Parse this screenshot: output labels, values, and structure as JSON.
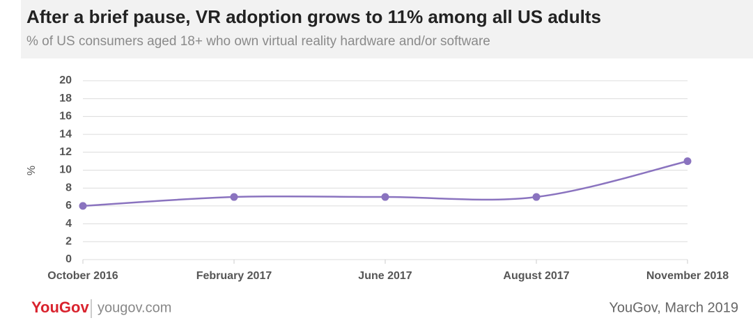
{
  "chart_data": {
    "type": "line",
    "title": "After a brief pause, VR adoption grows to 11% among all US adults",
    "subtitle": "% of US consumers aged 18+ who own virtual reality hardware and/or software",
    "y_label": "%",
    "categories": [
      "October 2016",
      "February 2017",
      "June 2017",
      "August 2017",
      "November 2018"
    ],
    "values": [
      6,
      7,
      7,
      7,
      11
    ],
    "color": "#8a73bf",
    "ylim": [
      0,
      20
    ],
    "yticks": [
      0,
      2,
      4,
      6,
      8,
      10,
      12,
      14,
      16,
      18,
      20
    ],
    "grid": true,
    "smooth": true,
    "brand": "YouGov",
    "website": "yougov.com",
    "source": "YouGov, March 2019"
  }
}
